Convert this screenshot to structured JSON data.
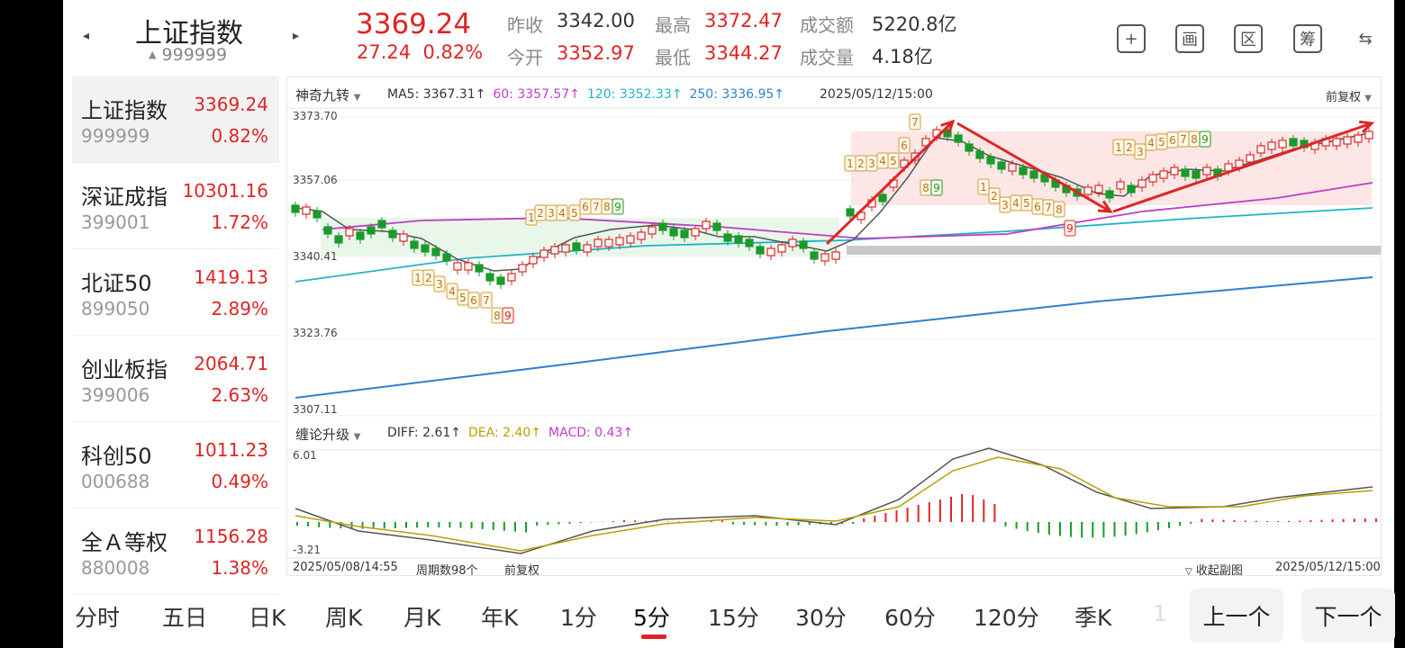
{
  "header": {
    "prev_arrow": "◂",
    "next_arrow": "▸",
    "title": "上证指数",
    "code": "999999",
    "code_arrow": "▲",
    "price": "3369.24",
    "change": "27.24",
    "change_pct": "0.82%",
    "stats": [
      {
        "label": "昨收",
        "value": "3342.00",
        "tone": "dark"
      },
      {
        "label": "最高",
        "value": "3372.47",
        "tone": "red"
      },
      {
        "label": "成交额",
        "value": "5220.8亿",
        "tone": "dark"
      },
      {
        "label": "今开",
        "value": "3352.97",
        "tone": "red"
      },
      {
        "label": "最低",
        "value": "3344.27",
        "tone": "red"
      },
      {
        "label": "成交量",
        "value": "4.18亿",
        "tone": "dark"
      }
    ],
    "icons": [
      {
        "name": "add-icon",
        "glyph": "+"
      },
      {
        "name": "draw-icon",
        "glyph": "画"
      },
      {
        "name": "interval-icon",
        "glyph": "区"
      },
      {
        "name": "chips-icon",
        "glyph": "筹"
      },
      {
        "name": "screen-switch-icon",
        "glyph": "⇆"
      }
    ]
  },
  "index_list": [
    {
      "name": "上证指数",
      "price": "3369.24",
      "code": "999999",
      "pct": "0.82%"
    },
    {
      "name": "深证成指",
      "price": "10301.16",
      "code": "399001",
      "pct": "1.72%"
    },
    {
      "name": "北证50",
      "price": "1419.13",
      "code": "899050",
      "pct": "2.89%"
    },
    {
      "name": "创业板指",
      "price": "2064.71",
      "code": "399006",
      "pct": "2.63%"
    },
    {
      "name": "科创50",
      "price": "1011.23",
      "code": "000688",
      "pct": "0.49%"
    },
    {
      "name": "全Ａ等权",
      "price": "1156.28",
      "code": "880008",
      "pct": "1.38%"
    }
  ],
  "chart": {
    "main_selector": "神奇九转",
    "ma": [
      {
        "label": "MA5: 3367.31↑",
        "color": "#333333"
      },
      {
        "label": "60: 3357.57↑",
        "color": "#c03cc8"
      },
      {
        "label": "120: 3352.33↑",
        "color": "#1fb4c4"
      },
      {
        "label": "250: 3336.95↑",
        "color": "#2f7fd0"
      }
    ],
    "datetime": "2025/05/12/15:00",
    "adjust": "前复权",
    "y_ticks": [
      "3373.70",
      "3357.06",
      "3340.41",
      "3323.76",
      "3307.11"
    ],
    "sub_selector": "缠论升级",
    "macd": [
      {
        "label": "DIFF: 2.61↑",
        "color": "#333333"
      },
      {
        "label": "DEA: 2.40↑",
        "color": "#b8a000"
      },
      {
        "label": "MACD: 0.43↑",
        "color": "#c03cc8"
      }
    ],
    "sub_ticks": [
      "6.01",
      "-3.21"
    ],
    "footer": {
      "start": "2025/05/08/14:55",
      "count": "周期数98个",
      "adjust": "前复权",
      "collapse": "收起副图",
      "end": "2025/05/12/15:00"
    },
    "seq_labels": [
      "1",
      "2",
      "3",
      "4",
      "5",
      "6",
      "7",
      "8",
      "9"
    ],
    "colors": {
      "up": "#e02424",
      "down": "#1a9a2a",
      "ma5": "#555555",
      "ma60": "#c03cc8",
      "ma120": "#1fb4c4",
      "ma250": "#2f7fd0"
    }
  },
  "tabs": [
    "分时",
    "五日",
    "日K",
    "周K",
    "月K",
    "年K",
    "1分",
    "5分",
    "15分",
    "30分",
    "60分",
    "120分",
    "季K",
    "1"
  ],
  "active_tab": "5分",
  "nav": {
    "prev": "上一个",
    "next": "下一个"
  }
}
